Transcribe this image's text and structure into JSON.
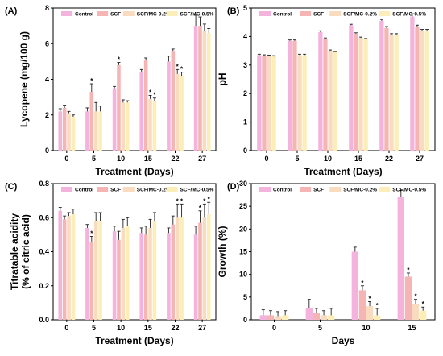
{
  "colors": {
    "Control": "#f4b3dc",
    "SCF": "#f6b5b5",
    "SCF/MC-0.2%": "#f9dbc0",
    "SCF/MC-0.5%": "#fbeeb9"
  },
  "chart_data": [
    {
      "type": "bar",
      "panel": "(A)",
      "xlabel": "Treatment (Days)",
      "ylabel": "Lycopene (mg/100 g)",
      "ylim": [
        0,
        8
      ],
      "yticks": [
        "0",
        "2",
        "4",
        "6",
        "8"
      ],
      "categories": [
        "0",
        "5",
        "10",
        "15",
        "22",
        "27"
      ],
      "legend": [
        "Control",
        "SCF",
        "SCF/MC-0.2%",
        "SCF/MC-0.5%"
      ],
      "series": [
        {
          "name": "Control",
          "values": [
            2.2,
            2.2,
            3.5,
            4.4,
            5.0,
            7.0
          ],
          "errors": [
            0.15,
            0.2,
            0.1,
            0.15,
            0.3,
            0.6
          ]
        },
        {
          "name": "SCF",
          "values": [
            2.4,
            3.3,
            4.8,
            5.1,
            5.6,
            7.0
          ],
          "errors": [
            0.15,
            0.45,
            0.15,
            0.1,
            0.1,
            0.5
          ]
        },
        {
          "name": "SCF/MC-0.2%",
          "values": [
            2.1,
            2.2,
            2.7,
            2.9,
            4.3,
            6.7
          ],
          "errors": [
            0.1,
            0.5,
            0.15,
            0.2,
            0.25,
            0.4
          ]
        },
        {
          "name": "SCF/MC-0.5%",
          "values": [
            1.9,
            2.2,
            2.7,
            2.8,
            4.2,
            6.6
          ],
          "errors": [
            0.1,
            0.3,
            0.1,
            0.15,
            0.2,
            0.25
          ]
        }
      ],
      "significance": [
        {
          "category": "5",
          "series": "SCF",
          "mark": "*"
        },
        {
          "category": "10",
          "series": "SCF",
          "mark": "*"
        },
        {
          "category": "15",
          "series": "SCF/MC-0.2%",
          "mark": "*"
        },
        {
          "category": "15",
          "series": "SCF/MC-0.5%",
          "mark": "*"
        },
        {
          "category": "22",
          "series": "SCF/MC-0.2%",
          "mark": "*"
        },
        {
          "category": "22",
          "series": "SCF/MC-0.5%",
          "mark": "*"
        }
      ]
    },
    {
      "type": "bar",
      "panel": "(B)",
      "xlabel": "Treatment (Days)",
      "ylabel": "pH",
      "ylim": [
        0,
        5
      ],
      "yticks": [
        "0",
        "1",
        "2",
        "3",
        "4",
        "5"
      ],
      "categories": [
        "0",
        "5",
        "10",
        "15",
        "22",
        "27"
      ],
      "legend": [
        "Control",
        "SCF",
        "SCF/MC-0.2%",
        "SCF/MC-0.5%"
      ],
      "series": [
        {
          "name": "Control",
          "values": [
            3.35,
            3.85,
            4.15,
            4.4,
            4.55,
            4.7
          ],
          "errors": [
            0.03,
            0.03,
            0.05,
            0.03,
            0.05,
            0.1
          ]
        },
        {
          "name": "SCF",
          "values": [
            3.33,
            3.85,
            3.9,
            4.1,
            4.3,
            4.35
          ],
          "errors": [
            0.03,
            0.03,
            0.05,
            0.03,
            0.05,
            0.05
          ]
        },
        {
          "name": "SCF/MC-0.2%",
          "values": [
            3.32,
            3.35,
            3.5,
            3.95,
            4.05,
            4.2
          ],
          "errors": [
            0.03,
            0.03,
            0.03,
            0.03,
            0.05,
            0.05
          ]
        },
        {
          "name": "SCF/MC-0.5%",
          "values": [
            3.3,
            3.35,
            3.45,
            3.9,
            4.05,
            4.2
          ],
          "errors": [
            0.03,
            0.03,
            0.03,
            0.03,
            0.05,
            0.05
          ]
        }
      ],
      "significance": []
    },
    {
      "type": "bar",
      "panel": "(C)",
      "xlabel": "Treatment (Days)",
      "ylabel_lines": [
        "Titratable acidity",
        "(% of citric acid)"
      ],
      "ylim": [
        0,
        0.8
      ],
      "yticks": [
        "0.0",
        "0.2",
        "0.4",
        "0.6",
        "0.8"
      ],
      "categories": [
        "0",
        "5",
        "10",
        "15",
        "22",
        "27"
      ],
      "legend": [
        "Control",
        "SCF",
        "SCF/MC-0.2%",
        "SCF/MC-0.5%"
      ],
      "series": [
        {
          "name": "Control",
          "values": [
            0.64,
            0.54,
            0.52,
            0.51,
            0.51,
            0.5
          ],
          "errors": [
            0.02,
            0.02,
            0.03,
            0.03,
            0.03,
            0.05
          ]
        },
        {
          "name": "SCF",
          "values": [
            0.59,
            0.46,
            0.47,
            0.5,
            0.56,
            0.57
          ],
          "errors": [
            0.02,
            0.03,
            0.05,
            0.05,
            0.05,
            0.07
          ]
        },
        {
          "name": "SCF/MC-0.2%",
          "values": [
            0.61,
            0.58,
            0.54,
            0.54,
            0.6,
            0.6
          ],
          "errors": [
            0.02,
            0.05,
            0.05,
            0.05,
            0.08,
            0.08
          ]
        },
        {
          "name": "SCF/MC-0.5%",
          "values": [
            0.62,
            0.58,
            0.55,
            0.58,
            0.6,
            0.62
          ],
          "errors": [
            0.03,
            0.05,
            0.05,
            0.05,
            0.08,
            0.07
          ]
        }
      ],
      "significance": [
        {
          "category": "5",
          "series": "SCF",
          "mark": "*"
        },
        {
          "category": "22",
          "series": "SCF/MC-0.2%",
          "mark": "*"
        },
        {
          "category": "22",
          "series": "SCF/MC-0.5%",
          "mark": "*"
        },
        {
          "category": "27",
          "series": "SCF",
          "mark": "*"
        },
        {
          "category": "27",
          "series": "SCF/MC-0.2%",
          "mark": "*"
        },
        {
          "category": "27",
          "series": "SCF/MC-0.5%",
          "mark": "*"
        }
      ]
    },
    {
      "type": "bar",
      "panel": "(D)",
      "xlabel": "Days",
      "ylabel": "Growth (%)",
      "ylim": [
        0,
        30
      ],
      "yticks": [
        "0",
        "5",
        "10",
        "15",
        "20",
        "25",
        "30"
      ],
      "categories": [
        "0",
        "5",
        "10",
        "15"
      ],
      "legend": [
        "Control",
        "SCF",
        "SCF/MC-0.2%",
        "SCF/MC-0.5%"
      ],
      "series": [
        {
          "name": "Control",
          "values": [
            1.0,
            2.5,
            15.0,
            27.0
          ],
          "errors": [
            1.2,
            2.0,
            1.0,
            1.5
          ]
        },
        {
          "name": "SCF",
          "values": [
            1.0,
            1.5,
            6.5,
            9.5
          ],
          "errors": [
            1.0,
            1.0,
            1.0,
            0.8
          ]
        },
        {
          "name": "SCF/MC-0.2%",
          "values": [
            0.8,
            1.0,
            3.0,
            3.5
          ],
          "errors": [
            1.0,
            1.0,
            1.0,
            1.0
          ]
        },
        {
          "name": "SCF/MC-0.5%",
          "values": [
            1.0,
            1.0,
            1.0,
            2.0
          ],
          "errors": [
            1.0,
            1.5,
            1.5,
            0.8
          ]
        }
      ],
      "significance": [
        {
          "category": "10",
          "series": "SCF",
          "mark": "*"
        },
        {
          "category": "10",
          "series": "SCF/MC-0.2%",
          "mark": "*"
        },
        {
          "category": "10",
          "series": "SCF/MC-0.5%",
          "mark": "*"
        },
        {
          "category": "15",
          "series": "SCF",
          "mark": "*"
        },
        {
          "category": "15",
          "series": "SCF/MC-0.2%",
          "mark": "*"
        },
        {
          "category": "15",
          "series": "SCF/MC-0.5%",
          "mark": "*"
        }
      ]
    }
  ]
}
